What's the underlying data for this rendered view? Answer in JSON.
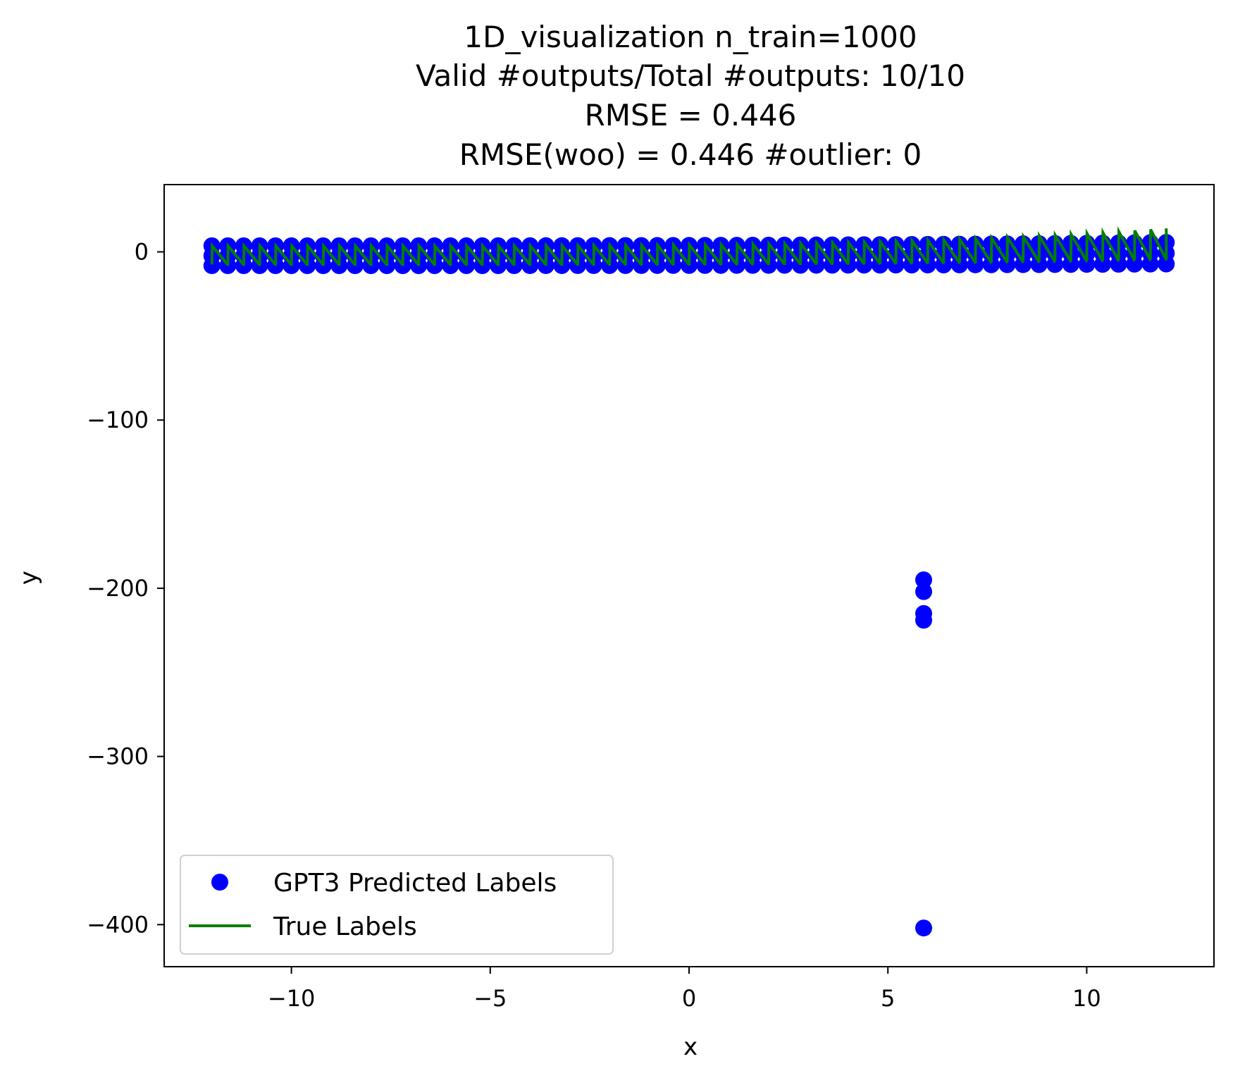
{
  "chart_data": {
    "type": "scatter",
    "title_lines": [
      "1D_visualization  n_train=1000",
      "Valid #outputs/Total #outputs: 10/10",
      "RMSE      = 0.446",
      "RMSE(woo) = 0.446   #outlier: 0"
    ],
    "xlabel": "x",
    "ylabel": "y",
    "xlim": [
      -13.2,
      13.2
    ],
    "ylim": [
      -425,
      40
    ],
    "x_ticks": [
      -10,
      -5,
      0,
      5,
      10
    ],
    "x_tick_labels": [
      "−10",
      "−5",
      "0",
      "5",
      "10"
    ],
    "y_ticks": [
      0,
      -100,
      -200,
      -300,
      -400
    ],
    "y_tick_labels": [
      "0",
      "−100",
      "−200",
      "−300",
      "−400"
    ],
    "grid": false,
    "legend_position": "lower-left",
    "legend": [
      {
        "label": "GPT3 Predicted Labels",
        "kind": "marker",
        "color": "#0000ff"
      },
      {
        "label": "True Labels",
        "kind": "line",
        "color": "#008000"
      }
    ],
    "series": [
      {
        "name": "GPT3 Predicted Labels",
        "kind": "scatter",
        "color": "#0000ff",
        "summary": "dense band of predictions between about -8 and 4 across x from -12 to 12",
        "x_range": [
          -12,
          12
        ],
        "band_low": -8,
        "band_high": 4,
        "band_count": 60,
        "outliers": [
          {
            "x": 5.9,
            "y": -195
          },
          {
            "x": 5.9,
            "y": -202
          },
          {
            "x": 5.9,
            "y": -215
          },
          {
            "x": 5.9,
            "y": -219
          },
          {
            "x": 5.9,
            "y": -402
          }
        ]
      },
      {
        "name": "True Labels",
        "kind": "line",
        "color": "#008000",
        "summary": "sawtooth oscillating about 10 units, slowly rising with x",
        "x_range": [
          -12,
          12
        ],
        "cycles": 60
      }
    ]
  }
}
